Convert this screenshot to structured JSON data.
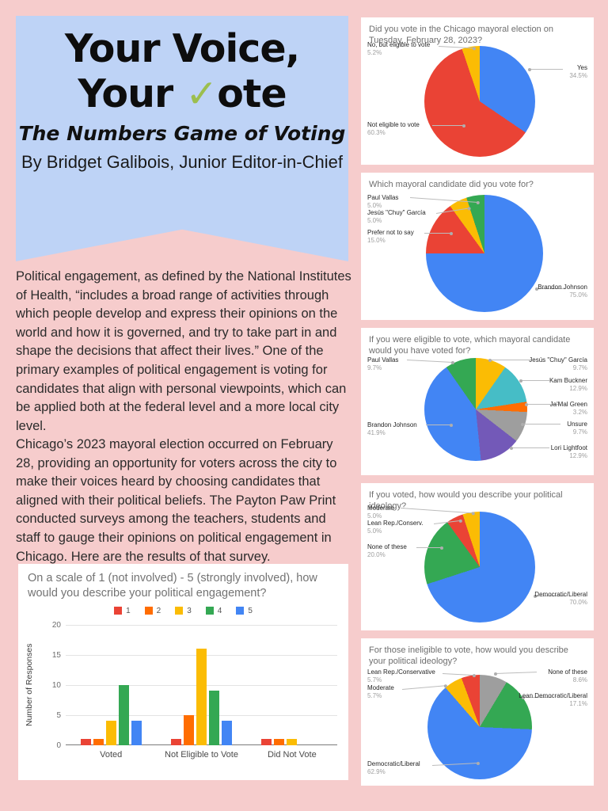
{
  "colors": {
    "page_bg": "#F6CCCC",
    "banner_bg": "#BED3F6",
    "check_green": "#9CBE4E",
    "palette": {
      "blue": "#4285F4",
      "red": "#EA4335",
      "yellow": "#FBBC04",
      "green": "#34A853",
      "orange": "#FF6D01",
      "teal": "#46BDC6",
      "gray": "#9E9E9E",
      "purple": "#7359B8"
    }
  },
  "banner": {
    "title_line1": "Your Voice,",
    "title_line2_pre": "Your ",
    "check_glyph": "✓",
    "title_line2_post": "ote",
    "subtitle": "The Numbers Game of Voting",
    "byline": "By Bridget Galibois, Junior Editor-in-Chief"
  },
  "paragraphs": [
    "Political engagement, as defined by the National Institutes of Health, “includes a broad range of activities through which people develop and express their opinions on the world and how it is governed, and try to take part in and shape the decisions that affect their lives.” One of the primary examples of political engagement is voting for candidates that align with personal viewpoints, which can be applied both at the federal level and a more local city level.",
    "Chicago’s 2023 mayoral election occurred on February 28, providing an opportunity for voters across the city to make their voices heard by choosing candidates that aligned with their political beliefs. The Payton Paw Print conducted surveys among the teachers, students and staff to gauge their opinions on political engagement in Chicago. Here are the results of that survey."
  ],
  "chart_data": [
    {
      "type": "bar",
      "title": "On a scale of 1 (not involved) - 5 (strongly involved), how would you describe your political engagement?",
      "ylabel": "Number of Responses",
      "xlabel": "",
      "ylim": [
        0,
        20
      ],
      "yticks": [
        20,
        15,
        10,
        5,
        0
      ],
      "grid": true,
      "legend_position": "top",
      "categories": [
        "Voted",
        "Not Eligible to Vote",
        "Did Not Vote"
      ],
      "series": [
        {
          "name": "1",
          "color": "#EA4335",
          "values": [
            1,
            1,
            1
          ]
        },
        {
          "name": "2",
          "color": "#FF6D01",
          "values": [
            1,
            5,
            1
          ]
        },
        {
          "name": "3",
          "color": "#FBBC04",
          "values": [
            4,
            16,
            1
          ]
        },
        {
          "name": "4",
          "color": "#34A853",
          "values": [
            10,
            9,
            0
          ]
        },
        {
          "name": "5",
          "color": "#4285F4",
          "values": [
            4,
            4,
            0
          ]
        }
      ]
    },
    {
      "type": "pie",
      "title": "Did you vote in the Chicago mayoral election on Tuesday, February 28, 2023?",
      "slices": [
        {
          "label": "Yes",
          "pct": 34.5,
          "pct_label": "34.5%",
          "color": "#4285F4"
        },
        {
          "label": "Not eligible to vote",
          "pct": 60.3,
          "pct_label": "60.3%",
          "color": "#EA4335"
        },
        {
          "label": "No, but eligible to vote",
          "pct": 5.2,
          "pct_label": "5.2%",
          "color": "#FBBC04"
        }
      ]
    },
    {
      "type": "pie",
      "title": "Which mayoral candidate did you vote for?",
      "slices": [
        {
          "label": "Brandon Johnson",
          "pct": 75.0,
          "pct_label": "75.0%",
          "color": "#4285F4"
        },
        {
          "label": "Prefer not to say",
          "pct": 15.0,
          "pct_label": "15.0%",
          "color": "#EA4335"
        },
        {
          "label": "Jesús \"Chuy\" García",
          "pct": 5.0,
          "pct_label": "5.0%",
          "color": "#FBBC04"
        },
        {
          "label": "Paul Vallas",
          "pct": 5.0,
          "pct_label": "5.0%",
          "color": "#34A853"
        }
      ]
    },
    {
      "type": "pie",
      "title": "If you were eligible to vote, which mayoral candidate would you have voted for?",
      "slices": [
        {
          "label": "Jesús \"Chuy\" García",
          "pct": 9.7,
          "pct_label": "9.7%",
          "color": "#FBBC04"
        },
        {
          "label": "Kam Buckner",
          "pct": 12.9,
          "pct_label": "12.9%",
          "color": "#46BDC6"
        },
        {
          "label": "Ja'Mal Green",
          "pct": 3.2,
          "pct_label": "3.2%",
          "color": "#FF6D01"
        },
        {
          "label": "Unsure",
          "pct": 9.7,
          "pct_label": "9.7%",
          "color": "#9E9E9E"
        },
        {
          "label": "Lori Lightfoot",
          "pct": 12.9,
          "pct_label": "12.9%",
          "color": "#7359B8"
        },
        {
          "label": "Brandon Johnson",
          "pct": 41.9,
          "pct_label": "41.9%",
          "color": "#4285F4"
        },
        {
          "label": "Paul Vallas",
          "pct": 9.7,
          "pct_label": "9.7%",
          "color": "#34A853"
        }
      ]
    },
    {
      "type": "pie",
      "title": "If you voted, how would you describe your political ideology?",
      "slices": [
        {
          "label": "Democratic/Liberal",
          "pct": 70.0,
          "pct_label": "70.0%",
          "color": "#4285F4"
        },
        {
          "label": "None of these",
          "pct": 20.0,
          "pct_label": "20.0%",
          "color": "#34A853"
        },
        {
          "label": "Lean Rep./Conserv.",
          "pct": 5.0,
          "pct_label": "5.0%",
          "color": "#EA4335"
        },
        {
          "label": "Moderate",
          "pct": 5.0,
          "pct_label": "5.0%",
          "color": "#FBBC04"
        }
      ]
    },
    {
      "type": "pie",
      "title": "For those ineligible to vote, how would you describe your political ideology?",
      "slices": [
        {
          "label": "None of these",
          "pct": 8.6,
          "pct_label": "8.6%",
          "color": "#9E9E9E"
        },
        {
          "label": "Lean Democratic/Liberal",
          "pct": 17.1,
          "pct_label": "17.1%",
          "color": "#34A853"
        },
        {
          "label": "Democratic/Liberal",
          "pct": 62.9,
          "pct_label": "62.9%",
          "color": "#4285F4"
        },
        {
          "label": "Moderate",
          "pct": 5.7,
          "pct_label": "5.7%",
          "color": "#FBBC04"
        },
        {
          "label": "Lean Rep./Conservative",
          "pct": 5.7,
          "pct_label": "5.7%",
          "color": "#EA4335"
        }
      ]
    }
  ]
}
